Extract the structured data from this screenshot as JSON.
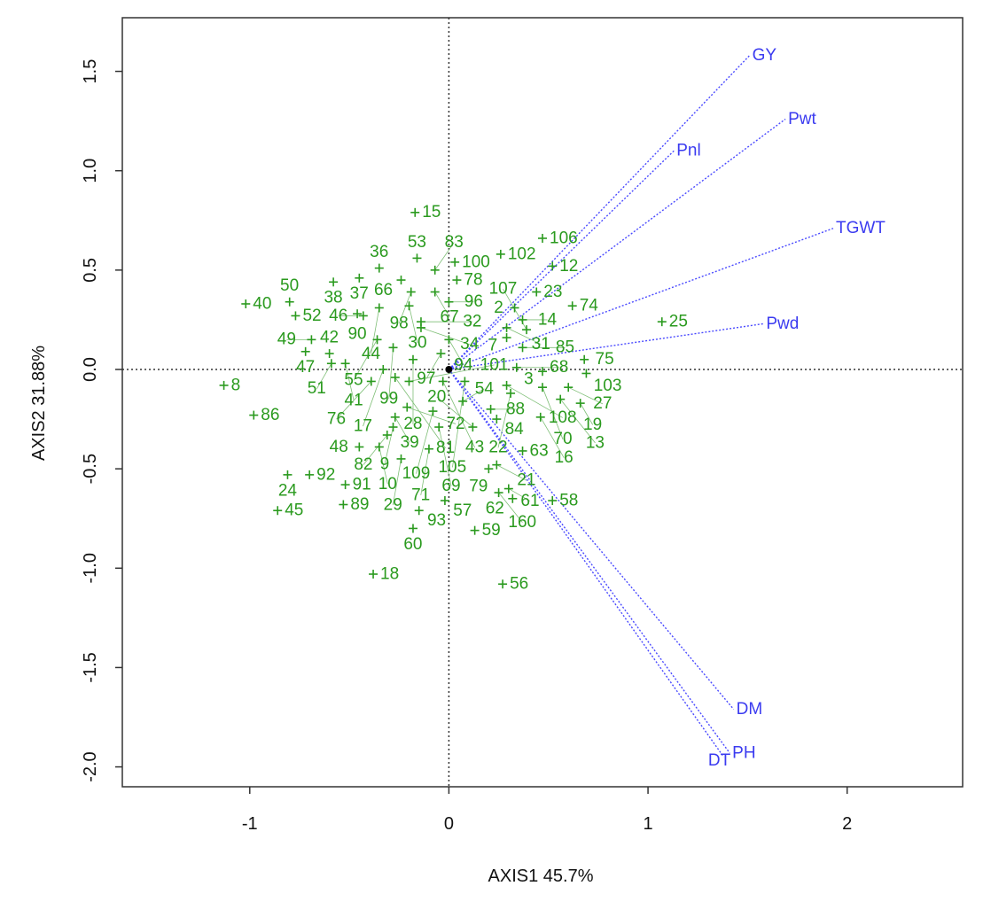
{
  "chart_data": {
    "type": "scatter",
    "subtype": "biplot",
    "title": "",
    "xlabel": "AXIS1 45.7%",
    "ylabel": "AXIS2 31.88%",
    "xlim": [
      -1.64,
      2.58
    ],
    "ylim": [
      -2.1,
      1.77
    ],
    "xticks": [
      -1,
      0,
      1,
      2
    ],
    "yticks": [
      -2.0,
      -1.5,
      -1.0,
      -0.5,
      0.0,
      0.5,
      1.0,
      1.5
    ],
    "xtick_labels": [
      "-1",
      "0",
      "1",
      "2"
    ],
    "ytick_labels": [
      "-2.0",
      "-1.5",
      "-1.0",
      "-0.5",
      "0.0",
      "0.5",
      "1.0",
      "1.5"
    ],
    "grid": false,
    "reference_lines": {
      "x": 0,
      "y": 0
    },
    "colors": {
      "points": "#2a9a1e",
      "vectors": "#3b3bf0"
    },
    "points": [
      {
        "label": "15",
        "x": -0.17,
        "y": 0.79
      },
      {
        "label": "53",
        "x": -0.16,
        "y": 0.56
      },
      {
        "label": "100",
        "x": 0.03,
        "y": 0.54
      },
      {
        "label": "83",
        "x": -0.07,
        "y": 0.5
      },
      {
        "label": "38",
        "x": -0.58,
        "y": 0.44
      },
      {
        "label": "37",
        "x": -0.45,
        "y": 0.46
      },
      {
        "label": "36",
        "x": -0.35,
        "y": 0.51
      },
      {
        "label": "66",
        "x": -0.24,
        "y": 0.45
      },
      {
        "label": "78",
        "x": 0.04,
        "y": 0.45
      },
      {
        "label": "98",
        "x": -0.19,
        "y": 0.39
      },
      {
        "label": "67",
        "x": -0.07,
        "y": 0.39
      },
      {
        "label": "96",
        "x": 0.0,
        "y": 0.34
      },
      {
        "label": "40",
        "x": -1.02,
        "y": 0.33
      },
      {
        "label": "50",
        "x": -0.8,
        "y": 0.34
      },
      {
        "label": "52",
        "x": -0.77,
        "y": 0.27
      },
      {
        "label": "90",
        "x": -0.46,
        "y": 0.28
      },
      {
        "label": "46",
        "x": -0.43,
        "y": 0.27
      },
      {
        "label": "44",
        "x": -0.35,
        "y": 0.31
      },
      {
        "label": "30",
        "x": -0.2,
        "y": 0.32
      },
      {
        "label": "32",
        "x": -0.14,
        "y": 0.24
      },
      {
        "label": "34",
        "x": -0.14,
        "y": 0.21
      },
      {
        "label": "49",
        "x": -0.69,
        "y": 0.15
      },
      {
        "label": "47",
        "x": -0.72,
        "y": 0.09
      },
      {
        "label": "42",
        "x": -0.6,
        "y": 0.08
      },
      {
        "label": "55",
        "x": -0.36,
        "y": 0.15
      },
      {
        "label": "99",
        "x": -0.28,
        "y": 0.11
      },
      {
        "label": "94",
        "x": 0.0,
        "y": 0.15
      },
      {
        "label": "97",
        "x": -0.04,
        "y": 0.08
      },
      {
        "label": "51",
        "x": -0.59,
        "y": 0.03
      },
      {
        "label": "41",
        "x": -0.52,
        "y": 0.03
      },
      {
        "label": "28",
        "x": -0.18,
        "y": 0.05
      },
      {
        "label": "17",
        "x": -0.33,
        "y": 0.0
      },
      {
        "label": "76",
        "x": -0.39,
        "y": -0.06
      },
      {
        "label": "81",
        "x": -0.27,
        "y": -0.04
      },
      {
        "label": "101",
        "x": -0.2,
        "y": -0.06
      },
      {
        "label": "43",
        "x": -0.03,
        "y": -0.06
      },
      {
        "label": "105",
        "x": 0.08,
        "y": -0.06
      },
      {
        "label": "8",
        "x": -1.13,
        "y": -0.08
      },
      {
        "label": "86",
        "x": -0.98,
        "y": -0.23
      },
      {
        "label": "72",
        "x": -0.21,
        "y": -0.19
      },
      {
        "label": "39",
        "x": -0.27,
        "y": -0.24
      },
      {
        "label": "109",
        "x": -0.08,
        "y": -0.21
      },
      {
        "label": "54",
        "x": 0.07,
        "y": -0.16
      },
      {
        "label": "88",
        "x": 0.21,
        "y": -0.2
      },
      {
        "label": "84",
        "x": 0.24,
        "y": -0.25
      },
      {
        "label": "69",
        "x": -0.05,
        "y": -0.29
      },
      {
        "label": "20",
        "x": 0.12,
        "y": -0.29
      },
      {
        "label": "9",
        "x": -0.28,
        "y": -0.29
      },
      {
        "label": "82",
        "x": -0.31,
        "y": -0.33
      },
      {
        "label": "48",
        "x": -0.45,
        "y": -0.39
      },
      {
        "label": "10",
        "x": -0.35,
        "y": -0.39
      },
      {
        "label": "29",
        "x": -0.24,
        "y": -0.45
      },
      {
        "label": "71",
        "x": -0.1,
        "y": -0.4
      },
      {
        "label": "63",
        "x": 0.37,
        "y": -0.41
      },
      {
        "label": "79",
        "x": 0.2,
        "y": -0.5
      },
      {
        "label": "21",
        "x": 0.24,
        "y": -0.48
      },
      {
        "label": "24",
        "x": -0.81,
        "y": -0.53
      },
      {
        "label": "92",
        "x": -0.7,
        "y": -0.53
      },
      {
        "label": "91",
        "x": -0.52,
        "y": -0.58
      },
      {
        "label": "89",
        "x": -0.53,
        "y": -0.68
      },
      {
        "label": "45",
        "x": -0.86,
        "y": -0.71
      },
      {
        "label": "93",
        "x": -0.15,
        "y": -0.71
      },
      {
        "label": "57",
        "x": -0.02,
        "y": -0.66
      },
      {
        "label": "60",
        "x": -0.18,
        "y": -0.8
      },
      {
        "label": "59",
        "x": 0.13,
        "y": -0.81
      },
      {
        "label": "61",
        "x": 0.3,
        "y": -0.6
      },
      {
        "label": "160",
        "x": 0.25,
        "y": -0.62
      },
      {
        "label": "62",
        "x": 0.32,
        "y": -0.65
      },
      {
        "label": "58",
        "x": 0.52,
        "y": -0.66
      },
      {
        "label": "18",
        "x": -0.38,
        "y": -1.03
      },
      {
        "label": "56",
        "x": 0.27,
        "y": -1.08
      },
      {
        "label": "102",
        "x": 0.26,
        "y": 0.58
      },
      {
        "label": "106",
        "x": 0.47,
        "y": 0.66
      },
      {
        "label": "12",
        "x": 0.52,
        "y": 0.52
      },
      {
        "label": "23",
        "x": 0.44,
        "y": 0.39
      },
      {
        "label": "74",
        "x": 0.62,
        "y": 0.32
      },
      {
        "label": "2",
        "x": 0.33,
        "y": 0.31
      },
      {
        "label": "14",
        "x": 0.37,
        "y": 0.25
      },
      {
        "label": "31",
        "x": 0.29,
        "y": 0.21
      },
      {
        "label": "107",
        "x": 0.39,
        "y": 0.2
      },
      {
        "label": "7",
        "x": 0.29,
        "y": 0.16
      },
      {
        "label": "85",
        "x": 0.37,
        "y": 0.11
      },
      {
        "label": "68",
        "x": 0.34,
        "y": 0.01
      },
      {
        "label": "3",
        "x": 0.47,
        "y": -0.01
      },
      {
        "label": "75",
        "x": 0.68,
        "y": 0.05
      },
      {
        "label": "103",
        "x": 0.69,
        "y": -0.02
      },
      {
        "label": "25",
        "x": 1.07,
        "y": 0.24
      },
      {
        "label": "108",
        "x": 0.29,
        "y": -0.08
      },
      {
        "label": "22",
        "x": 0.31,
        "y": -0.12
      },
      {
        "label": "70",
        "x": 0.47,
        "y": -0.09
      },
      {
        "label": "27",
        "x": 0.6,
        "y": -0.09
      },
      {
        "label": "19",
        "x": 0.66,
        "y": -0.17
      },
      {
        "label": "16",
        "x": 0.46,
        "y": -0.24
      },
      {
        "label": "13",
        "x": 0.56,
        "y": -0.15
      }
    ],
    "vectors": [
      {
        "label": "GY",
        "x": 1.51,
        "y": 1.58
      },
      {
        "label": "Pwt",
        "x": 1.69,
        "y": 1.26
      },
      {
        "label": "Pnl",
        "x": 1.13,
        "y": 1.1
      },
      {
        "label": "TGWT",
        "x": 1.93,
        "y": 0.71
      },
      {
        "label": "Pwd",
        "x": 1.58,
        "y": 0.23
      },
      {
        "label": "DM",
        "x": 1.43,
        "y": -1.71
      },
      {
        "label": "PH",
        "x": 1.41,
        "y": -1.93
      },
      {
        "label": "DT",
        "x": 1.38,
        "y": -1.95
      }
    ]
  }
}
